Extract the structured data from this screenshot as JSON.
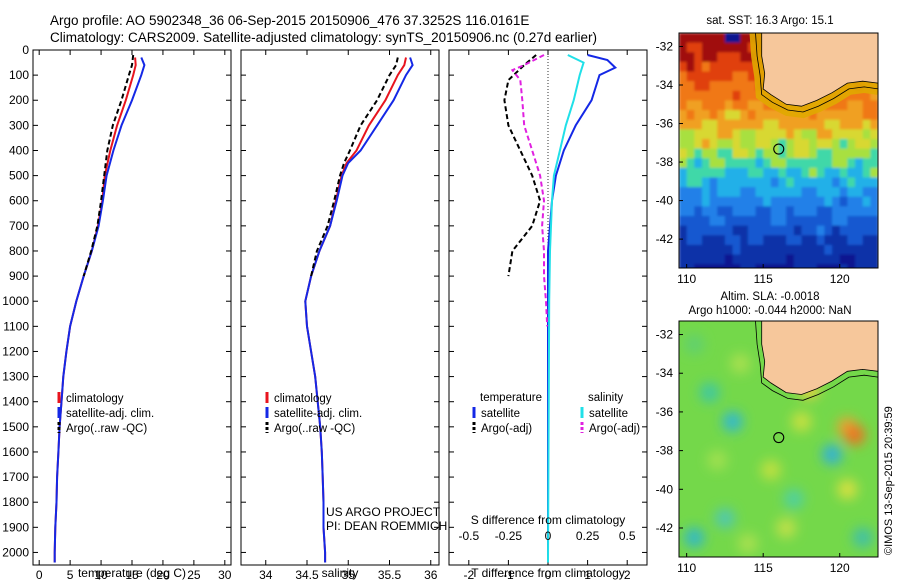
{
  "header": {
    "line1": "Argo profile: AO 5902348_36 06-Sep-2015 20150906_476 37.3252S 116.0161E",
    "line2": "Climatology: CARS2009. Satellite-adjusted climatology: synTS_20150906.nc (0.27d earlier)"
  },
  "colors": {
    "climatology": "#e8141e",
    "satellite": "#1428e6",
    "argo": "#000000",
    "salinity_sat": "#20e0e8",
    "salinity_argo": "#e020e0",
    "land": "#f6c79b"
  },
  "chart_data": [
    {
      "type": "line",
      "name": "temperature-profile",
      "xlabel": "temperature (deg C)",
      "ylabel": "",
      "xlim": [
        -1,
        31
      ],
      "ylim": [
        2050,
        0
      ],
      "xticks": [
        0,
        5,
        10,
        15,
        20,
        25,
        30
      ],
      "xtick_labels": [
        "0",
        "5",
        "10",
        "15",
        "20",
        "25",
        "30"
      ],
      "yticks": [
        0,
        100,
        200,
        300,
        400,
        500,
        600,
        700,
        800,
        900,
        1000,
        1100,
        1200,
        1300,
        1400,
        1500,
        1600,
        1700,
        1800,
        1900,
        2000
      ],
      "ytick_labels": [
        "0",
        "100",
        "200",
        "300",
        "400",
        "500",
        "600",
        "700",
        "800",
        "900",
        "1000",
        "1100",
        "1200",
        "1300",
        "1400",
        "1500",
        "1600",
        "1700",
        "1800",
        "1900",
        "2000"
      ],
      "legend": {
        "placement": "bottom-right",
        "entries": [
          {
            "label": "climatology",
            "color": "#e8141e"
          },
          {
            "label": "satellite-adj. clim.",
            "color": "#1428e6"
          },
          {
            "label": "Argo(..raw -QC)",
            "color": "#000000"
          }
        ]
      },
      "series": [
        {
          "color": "#e8141e",
          "dash": false,
          "points": [
            [
              15.5,
              30
            ],
            [
              15.6,
              60
            ],
            [
              15.2,
              100
            ],
            [
              14.0,
              200
            ],
            [
              12.6,
              300
            ],
            [
              11.5,
              400
            ],
            [
              10.6,
              500
            ],
            [
              10.2,
              600
            ],
            [
              9.5,
              700
            ],
            [
              8.5,
              800
            ],
            [
              7.2,
              900
            ],
            [
              6.0,
              1000
            ],
            [
              5.0,
              1100
            ],
            [
              4.4,
              1200
            ],
            [
              3.9,
              1300
            ],
            [
              3.6,
              1400
            ],
            [
              3.3,
              1500
            ],
            [
              3.1,
              1600
            ],
            [
              2.9,
              1700
            ],
            [
              2.8,
              1800
            ],
            [
              2.6,
              1900
            ],
            [
              2.5,
              2000
            ],
            [
              2.5,
              2040
            ]
          ]
        },
        {
          "color": "#1428e6",
          "dash": false,
          "points": [
            [
              16.5,
              30
            ],
            [
              17.0,
              60
            ],
            [
              16.5,
              100
            ],
            [
              15.0,
              200
            ],
            [
              13.3,
              300
            ],
            [
              12.0,
              400
            ],
            [
              10.9,
              500
            ],
            [
              10.3,
              600
            ],
            [
              9.6,
              700
            ],
            [
              8.5,
              800
            ],
            [
              7.2,
              900
            ],
            [
              6.0,
              1000
            ],
            [
              5.0,
              1100
            ],
            [
              4.4,
              1200
            ],
            [
              3.9,
              1300
            ],
            [
              3.6,
              1400
            ],
            [
              3.3,
              1500
            ],
            [
              3.1,
              1600
            ],
            [
              2.9,
              1700
            ],
            [
              2.8,
              1800
            ],
            [
              2.6,
              1900
            ],
            [
              2.5,
              2000
            ],
            [
              2.5,
              2040
            ]
          ]
        },
        {
          "color": "#000000",
          "dash": true,
          "points": [
            [
              15.2,
              20
            ],
            [
              15.0,
              60
            ],
            [
              14.5,
              100
            ],
            [
              13.3,
              200
            ],
            [
              11.9,
              300
            ],
            [
              11.0,
              400
            ],
            [
              10.5,
              500
            ],
            [
              10.0,
              600
            ],
            [
              9.4,
              700
            ],
            [
              8.4,
              800
            ],
            [
              7.2,
              900
            ]
          ]
        }
      ]
    },
    {
      "type": "line",
      "name": "salinity-profile",
      "xlabel": "salinity",
      "ylabel": "",
      "xlim": [
        33.7,
        36.1
      ],
      "ylim": [
        2050,
        0
      ],
      "xticks": [
        34,
        34.5,
        35,
        35.5,
        36
      ],
      "xtick_labels": [
        "34",
        "34.5",
        "35",
        "35.5",
        "36"
      ],
      "legend": {
        "placement": "bottom-right",
        "entries": [
          {
            "label": "climatology",
            "color": "#e8141e"
          },
          {
            "label": "satellite-adj. clim.",
            "color": "#1428e6"
          },
          {
            "label": "Argo(..raw -QC)",
            "color": "#000000"
          }
        ]
      },
      "annotation_lines": [
        "US ARGO PROJECT",
        "PI: DEAN ROEMMICH"
      ],
      "series": [
        {
          "color": "#e8141e",
          "dash": false,
          "points": [
            [
              35.7,
              30
            ],
            [
              35.68,
              60
            ],
            [
              35.6,
              100
            ],
            [
              35.45,
              200
            ],
            [
              35.25,
              300
            ],
            [
              35.1,
              400
            ],
            [
              34.98,
              450
            ],
            [
              34.92,
              500
            ],
            [
              34.85,
              600
            ],
            [
              34.78,
              700
            ],
            [
              34.65,
              800
            ],
            [
              34.55,
              900
            ],
            [
              34.48,
              1000
            ],
            [
              34.5,
              1100
            ],
            [
              34.55,
              1200
            ],
            [
              34.6,
              1300
            ],
            [
              34.63,
              1400
            ],
            [
              34.66,
              1500
            ],
            [
              34.68,
              1600
            ],
            [
              34.69,
              1700
            ],
            [
              34.7,
              1800
            ],
            [
              34.7,
              1900
            ],
            [
              34.72,
              2000
            ],
            [
              34.72,
              2040
            ]
          ]
        },
        {
          "color": "#1428e6",
          "dash": false,
          "points": [
            [
              35.75,
              30
            ],
            [
              35.78,
              60
            ],
            [
              35.7,
              100
            ],
            [
              35.55,
              200
            ],
            [
              35.35,
              300
            ],
            [
              35.15,
              400
            ],
            [
              35.0,
              450
            ],
            [
              34.93,
              500
            ],
            [
              34.86,
              600
            ],
            [
              34.78,
              700
            ],
            [
              34.65,
              800
            ],
            [
              34.55,
              900
            ],
            [
              34.48,
              1000
            ],
            [
              34.5,
              1100
            ],
            [
              34.55,
              1200
            ],
            [
              34.6,
              1300
            ],
            [
              34.63,
              1400
            ],
            [
              34.66,
              1500
            ],
            [
              34.68,
              1600
            ],
            [
              34.69,
              1700
            ],
            [
              34.7,
              1800
            ],
            [
              34.7,
              1900
            ],
            [
              34.72,
              2000
            ],
            [
              34.72,
              2040
            ]
          ]
        },
        {
          "color": "#000000",
          "dash": true,
          "points": [
            [
              35.6,
              30
            ],
            [
              35.58,
              60
            ],
            [
              35.5,
              100
            ],
            [
              35.35,
              200
            ],
            [
              35.15,
              300
            ],
            [
              35.02,
              400
            ],
            [
              34.95,
              450
            ],
            [
              34.9,
              500
            ],
            [
              34.83,
              600
            ],
            [
              34.75,
              700
            ],
            [
              34.62,
              800
            ],
            [
              34.55,
              900
            ]
          ]
        }
      ]
    },
    {
      "type": "line",
      "name": "difference-profile",
      "xlabel": "T difference from climatology",
      "secondary_xlabel": "S difference from climatology",
      "xlim": [
        -2.5,
        2.5
      ],
      "ylim": [
        2050,
        0
      ],
      "xticks": [
        -2,
        -1,
        0,
        1,
        2
      ],
      "xtick_labels": [
        "-2",
        "-1",
        "0",
        "1",
        "2"
      ],
      "secondary_xticks": [
        -0.5,
        -0.25,
        0,
        0.25,
        0.5
      ],
      "secondary_xtick_labels": [
        "-0.5",
        "-0.25",
        "0",
        "0.25",
        "0.5"
      ],
      "legend": {
        "placement": "bottom",
        "groups": [
          {
            "title": "temperature",
            "entries": [
              {
                "label": "satellite",
                "color": "#1428e6"
              },
              {
                "label": "Argo(-adj)",
                "color": "#000000"
              }
            ]
          },
          {
            "title": "salinity",
            "entries": [
              {
                "label": "satellite",
                "color": "#20e0e8"
              },
              {
                "label": "Argo(-adj)",
                "color": "#e020e0"
              }
            ]
          }
        ]
      },
      "series": [
        {
          "color": "#1428e6",
          "dash": false,
          "points": [
            [
              1.0,
              20
            ],
            [
              1.5,
              40
            ],
            [
              1.7,
              70
            ],
            [
              1.3,
              100
            ],
            [
              1.1,
              200
            ],
            [
              0.7,
              300
            ],
            [
              0.4,
              400
            ],
            [
              0.2,
              500
            ],
            [
              0.1,
              600
            ],
            [
              0.05,
              700
            ],
            [
              0.0,
              800
            ],
            [
              0.0,
              1000
            ],
            [
              0.0,
              1500
            ],
            [
              0.0,
              2040
            ]
          ]
        },
        {
          "color": "#20e0e8",
          "dash": false,
          "points": [
            [
              0.5,
              20
            ],
            [
              0.9,
              50
            ],
            [
              0.8,
              100
            ],
            [
              0.65,
              200
            ],
            [
              0.45,
              300
            ],
            [
              0.3,
              400
            ],
            [
              0.15,
              500
            ],
            [
              0.1,
              600
            ],
            [
              0.05,
              800
            ],
            [
              0.03,
              1000
            ],
            [
              0.0,
              2040
            ]
          ]
        },
        {
          "color": "#000000",
          "dash": true,
          "points": [
            [
              -0.3,
              20
            ],
            [
              -0.6,
              60
            ],
            [
              -1.0,
              120
            ],
            [
              -1.1,
              200
            ],
            [
              -1.0,
              300
            ],
            [
              -0.7,
              400
            ],
            [
              -0.4,
              500
            ],
            [
              -0.2,
              600
            ],
            [
              -0.4,
              700
            ],
            [
              -0.9,
              800
            ],
            [
              -1.0,
              900
            ]
          ]
        },
        {
          "color": "#e020e0",
          "dash": true,
          "points": [
            [
              -0.1,
              20
            ],
            [
              -0.6,
              60
            ],
            [
              -0.9,
              80
            ],
            [
              -0.7,
              120
            ],
            [
              -0.65,
              200
            ],
            [
              -0.6,
              300
            ],
            [
              -0.4,
              400
            ],
            [
              -0.2,
              500
            ],
            [
              -0.1,
              600
            ],
            [
              -0.15,
              700
            ],
            [
              -0.1,
              800
            ],
            [
              -0.1,
              900
            ],
            [
              -0.05,
              1000
            ],
            [
              -0.02,
              1100
            ]
          ]
        }
      ]
    },
    {
      "type": "heatmap",
      "name": "sst-map",
      "title": "sat. SST: 16.3 Argo: 15.1",
      "xlim": [
        109.5,
        122.5
      ],
      "ylim": [
        -43.5,
        -31.3
      ],
      "xticks": [
        110,
        115,
        120
      ],
      "xtick_labels": [
        "110",
        "115",
        "120"
      ],
      "yticks": [
        -32,
        -34,
        -36,
        -38,
        -40,
        -42
      ],
      "ytick_labels": [
        "-32",
        "-34",
        "-36",
        "-38",
        "-40",
        "-42"
      ],
      "marker": [
        116.0161,
        -37.3252
      ]
    },
    {
      "type": "heatmap",
      "name": "sla-map",
      "title_lines": [
        "Altim. SLA: -0.0018",
        "Argo h1000: -0.044 h2000: NaN"
      ],
      "xlim": [
        109.5,
        122.5
      ],
      "ylim": [
        -43.5,
        -31.3
      ],
      "xticks": [
        110,
        115,
        120
      ],
      "xtick_labels": [
        "110",
        "115",
        "120"
      ],
      "yticks": [
        -32,
        -34,
        -36,
        -38,
        -40,
        -42
      ],
      "ytick_labels": [
        "-32",
        "-34",
        "-36",
        "-38",
        "-40",
        "-42"
      ],
      "marker": [
        116.0161,
        -37.3252
      ]
    }
  ],
  "credit": "©IMOS 13-Sep-2015 20:39:59"
}
